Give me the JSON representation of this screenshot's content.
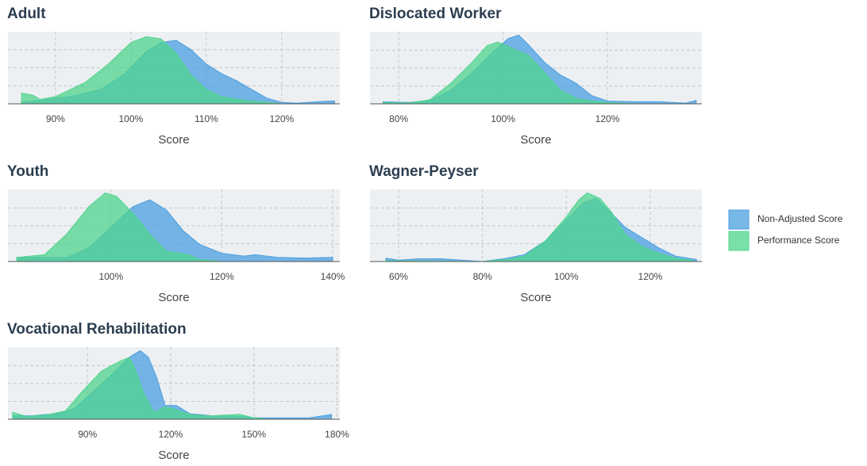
{
  "chart_data": [
    {
      "type": "area",
      "title": "Adult",
      "x_label": "Score",
      "xlim": [
        83.7,
        127.7
      ],
      "xticks": [
        {
          "value": 90,
          "label": "90%"
        },
        {
          "value": 100,
          "label": "100%"
        },
        {
          "value": 110,
          "label": "110%"
        },
        {
          "value": 120,
          "label": "120%"
        }
      ],
      "ylim": [
        0,
        1
      ],
      "yticks": [
        0.25,
        0.5,
        0.75
      ],
      "grid": true,
      "series": [
        {
          "name": "Non-Adjusted Score",
          "color": "#4a9fe0",
          "x": [
            85.5,
            88,
            92,
            96,
            99,
            102,
            104,
            106,
            108,
            110,
            112,
            114,
            116,
            118,
            120,
            122,
            125,
            127
          ],
          "values": [
            0.02,
            0.05,
            0.1,
            0.2,
            0.4,
            0.72,
            0.85,
            0.88,
            0.75,
            0.55,
            0.42,
            0.32,
            0.2,
            0.08,
            0.02,
            0.01,
            0.03,
            0.04
          ]
        },
        {
          "name": "Performance Score",
          "color": "#4fd48e",
          "x": [
            85.5,
            87,
            88,
            90,
            94,
            97,
            100,
            102,
            104,
            106,
            108,
            110,
            112,
            115,
            118,
            120
          ],
          "values": [
            0.15,
            0.12,
            0.06,
            0.1,
            0.3,
            0.55,
            0.85,
            0.93,
            0.9,
            0.7,
            0.4,
            0.2,
            0.1,
            0.05,
            0.02,
            0
          ]
        }
      ]
    },
    {
      "type": "area",
      "title": "Dislocated Worker",
      "x_label": "Score",
      "xlim": [
        74.5,
        138.1
      ],
      "xticks": [
        {
          "value": 80,
          "label": "80%"
        },
        {
          "value": 100,
          "label": "100%"
        },
        {
          "value": 120,
          "label": "120%"
        }
      ],
      "ylim": [
        0,
        1.05
      ],
      "yticks": [
        0.26,
        0.52,
        0.78
      ],
      "grid": true,
      "series": [
        {
          "name": "Non-Adjusted Score",
          "color": "#4a9fe0",
          "x": [
            77,
            82,
            86,
            90,
            94,
            98,
            101,
            103,
            105,
            108,
            111,
            114,
            117,
            120,
            125,
            130,
            135,
            137
          ],
          "values": [
            0.03,
            0.02,
            0.05,
            0.2,
            0.45,
            0.75,
            0.95,
            1.0,
            0.85,
            0.6,
            0.42,
            0.3,
            0.12,
            0.04,
            0.03,
            0.03,
            0.01,
            0.05
          ]
        },
        {
          "name": "Performance Score",
          "color": "#4fd48e",
          "x": [
            77,
            82,
            86,
            90,
            94,
            97,
            99,
            102,
            105,
            108,
            111,
            114,
            118,
            122,
            126
          ],
          "values": [
            0.02,
            0.01,
            0.06,
            0.3,
            0.6,
            0.85,
            0.9,
            0.8,
            0.7,
            0.45,
            0.2,
            0.08,
            0.03,
            0.01,
            0
          ]
        }
      ]
    },
    {
      "type": "area",
      "title": "Youth",
      "x_label": "Score",
      "xlim": [
        81.4,
        141.3
      ],
      "xticks": [
        {
          "value": 100,
          "label": "100%"
        },
        {
          "value": 120,
          "label": "120%"
        },
        {
          "value": 140,
          "label": "140%"
        }
      ],
      "ylim": [
        0,
        1.05
      ],
      "yticks": [
        0.26,
        0.52,
        0.78
      ],
      "grid": true,
      "series": [
        {
          "name": "Non-Adjusted Score",
          "color": "#4a9fe0",
          "x": [
            83,
            92,
            96,
            100,
            104,
            107,
            110,
            113,
            116,
            120,
            124,
            126,
            130,
            135,
            140
          ],
          "values": [
            0.06,
            0.06,
            0.2,
            0.5,
            0.8,
            0.9,
            0.75,
            0.45,
            0.25,
            0.12,
            0.08,
            0.1,
            0.06,
            0.05,
            0.06
          ]
        },
        {
          "name": "Performance Score",
          "color": "#4fd48e",
          "x": [
            83,
            88,
            92,
            96,
            99,
            101,
            104,
            107,
            110,
            114,
            116,
            120
          ],
          "values": [
            0.06,
            0.1,
            0.4,
            0.8,
            1.0,
            0.95,
            0.7,
            0.4,
            0.15,
            0.1,
            0.03,
            0
          ]
        }
      ]
    },
    {
      "type": "area",
      "title": "Wagner-Peyser",
      "x_label": "Score",
      "xlim": [
        53.2,
        132.3
      ],
      "xticks": [
        {
          "value": 60,
          "label": "60%"
        },
        {
          "value": 80,
          "label": "80%"
        },
        {
          "value": 100,
          "label": "100%"
        },
        {
          "value": 120,
          "label": "120%"
        }
      ],
      "ylim": [
        0,
        1.05
      ],
      "yticks": [
        0.26,
        0.52,
        0.78
      ],
      "grid": true,
      "series": [
        {
          "name": "Non-Adjusted Score",
          "color": "#4a9fe0",
          "x": [
            57,
            60,
            65,
            70,
            75,
            80,
            85,
            90,
            95,
            100,
            104,
            107,
            110,
            114,
            118,
            122,
            126,
            131
          ],
          "values": [
            0.05,
            0.02,
            0.04,
            0.04,
            0.02,
            0,
            0.04,
            0.1,
            0.3,
            0.6,
            0.85,
            0.92,
            0.75,
            0.5,
            0.35,
            0.2,
            0.08,
            0.03
          ]
        },
        {
          "name": "Performance Score",
          "color": "#4fd48e",
          "x": [
            57,
            80,
            86,
            90,
            95,
            100,
            103,
            105,
            108,
            111,
            114,
            118,
            122,
            126,
            130
          ],
          "values": [
            0.01,
            0,
            0.03,
            0.08,
            0.3,
            0.65,
            0.9,
            1.0,
            0.92,
            0.7,
            0.4,
            0.22,
            0.12,
            0.05,
            0.02
          ]
        }
      ]
    },
    {
      "type": "area",
      "title": "Vocational Rehabilitation",
      "x_label": "Score",
      "xlim": [
        61.3,
        181
      ],
      "xticks": [
        {
          "value": 90,
          "label": "90%"
        },
        {
          "value": 120,
          "label": "120%"
        },
        {
          "value": 150,
          "label": "150%"
        },
        {
          "value": 180,
          "label": "180%"
        }
      ],
      "ylim": [
        0,
        1.05
      ],
      "yticks": [
        0.26,
        0.52,
        0.78
      ],
      "grid": true,
      "series": [
        {
          "name": "Non-Adjusted Score",
          "color": "#4a9fe0",
          "x": [
            63,
            70,
            78,
            85,
            92,
            100,
            105,
            109,
            112,
            115,
            118,
            122,
            127,
            135,
            145,
            150,
            160,
            170,
            178
          ],
          "values": [
            0.05,
            0.05,
            0.08,
            0.15,
            0.4,
            0.7,
            0.9,
            1.0,
            0.9,
            0.6,
            0.2,
            0.2,
            0.08,
            0.05,
            0.04,
            0.02,
            0.02,
            0.02,
            0.07
          ]
        },
        {
          "name": "Performance Score",
          "color": "#4fd48e",
          "x": [
            63,
            68,
            75,
            82,
            88,
            95,
            102,
            105,
            107,
            110,
            114,
            118,
            121,
            128,
            135,
            145,
            150,
            155
          ],
          "values": [
            0.1,
            0.04,
            0.06,
            0.12,
            0.4,
            0.7,
            0.85,
            0.9,
            0.75,
            0.4,
            0.1,
            0.18,
            0.15,
            0.06,
            0.05,
            0.07,
            0.02,
            0
          ]
        }
      ]
    }
  ]
}
